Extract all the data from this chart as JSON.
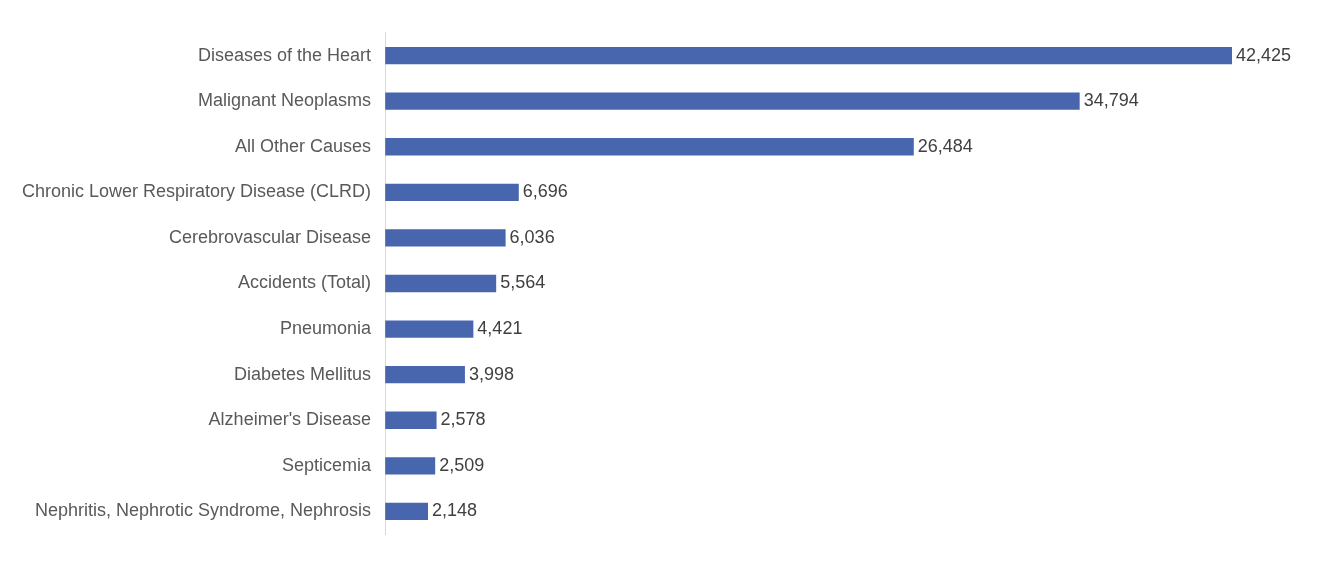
{
  "chart_data": {
    "type": "bar",
    "orientation": "horizontal",
    "categories": [
      "Diseases of the Heart",
      "Malignant Neoplasms",
      "All Other Causes",
      "Chronic Lower Respiratory Disease (CLRD)",
      "Cerebrovascular Disease",
      "Accidents (Total)",
      "Pneumonia",
      "Diabetes Mellitus",
      "Alzheimer's Disease",
      "Septicemia",
      "Nephritis, Nephrotic Syndrome, Nephrosis"
    ],
    "values": [
      42425,
      34794,
      26484,
      6696,
      6036,
      5564,
      4421,
      3998,
      2578,
      2509,
      2148
    ],
    "value_labels": [
      "42,425",
      "34,794",
      "26,484",
      "6,696",
      "6,036",
      "5,564",
      "4,421",
      "3,998",
      "2,578",
      "2,509",
      "2,148"
    ],
    "color": "#4766ae",
    "legend": false
  }
}
